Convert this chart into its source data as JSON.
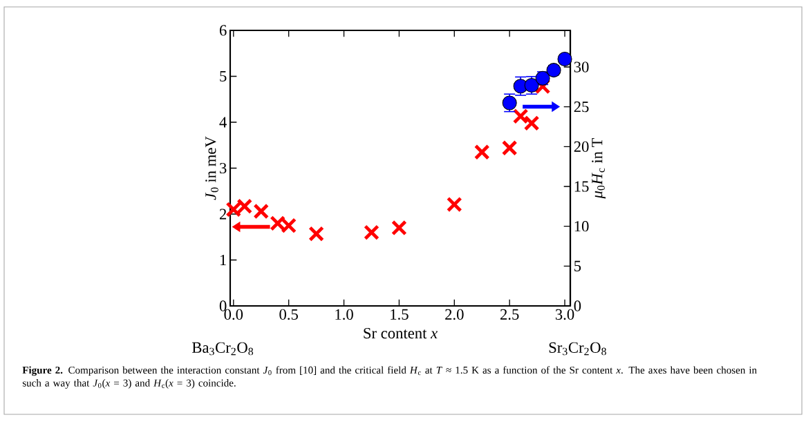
{
  "chart_data": {
    "type": "scatter",
    "xlabel": "Sr content *x*",
    "ylabel": "*J*$_{0}$ in meV",
    "y2label": "*μ*$_{0}$*H*$_{c}$ in T",
    "x": [
      0,
      0.1,
      0.25,
      0.4,
      0.5,
      0.75,
      1.25,
      1.5,
      2.0,
      2.25,
      2.5,
      2.6,
      2.7,
      2.8
    ],
    "series": [
      {
        "marker": "cross",
        "color": "#ff0000",
        "values": [
          2.1,
          2.17,
          2.06,
          1.8,
          1.75,
          1.57,
          1.6,
          1.7,
          2.21,
          3.35,
          3.44,
          4.13,
          3.98,
          4.78
        ]
      },
      {
        "marker": "circle",
        "color": "#0000ff",
        "axis": "y2",
        "x": [
          2.5,
          2.6,
          2.7,
          2.8,
          2.9,
          3.0
        ],
        "values": [
          25.5,
          27.6,
          27.7,
          28.6,
          29.6,
          31.0
        ],
        "errors": [
          1.1,
          1.15,
          1.1,
          0.8,
          0.6,
          0.5
        ]
      }
    ],
    "xlim": [
      -0.03,
      3.05
    ],
    "ylim": [
      0,
      6
    ],
    "y2lim": [
      0,
      34.6
    ],
    "xticks": [
      {
        "value": 0,
        "label": "0.0"
      },
      0.5,
      {
        "value": 1,
        "label": "1.0"
      },
      1.5,
      {
        "value": 2,
        "label": "2.0"
      },
      2.5,
      {
        "value": 3,
        "label": "3.0"
      }
    ],
    "yticks": [
      0,
      1,
      2,
      3,
      4,
      5,
      6
    ],
    "y2ticks": [
      0,
      5,
      10,
      15,
      20,
      25,
      30
    ],
    "grid": false,
    "annotations": [
      "Ba$_{3}$Cr$_{2}$O$_{8}$",
      "Sr$_{3}$Cr$_{2}$O$_{8}$",
      "**Figure 2.** Comparison between the interaction constant *J*$_{0}$ from [10] and the critical field *H*$_{c}$ at *T* ≈ 1.5 K as a function of the Sr content *x*. The axes have been chosen in such a way that *J*$_{0}$(*x* = 3) and *H*$_{c}$(*x* = 3) coincide."
    ]
  }
}
